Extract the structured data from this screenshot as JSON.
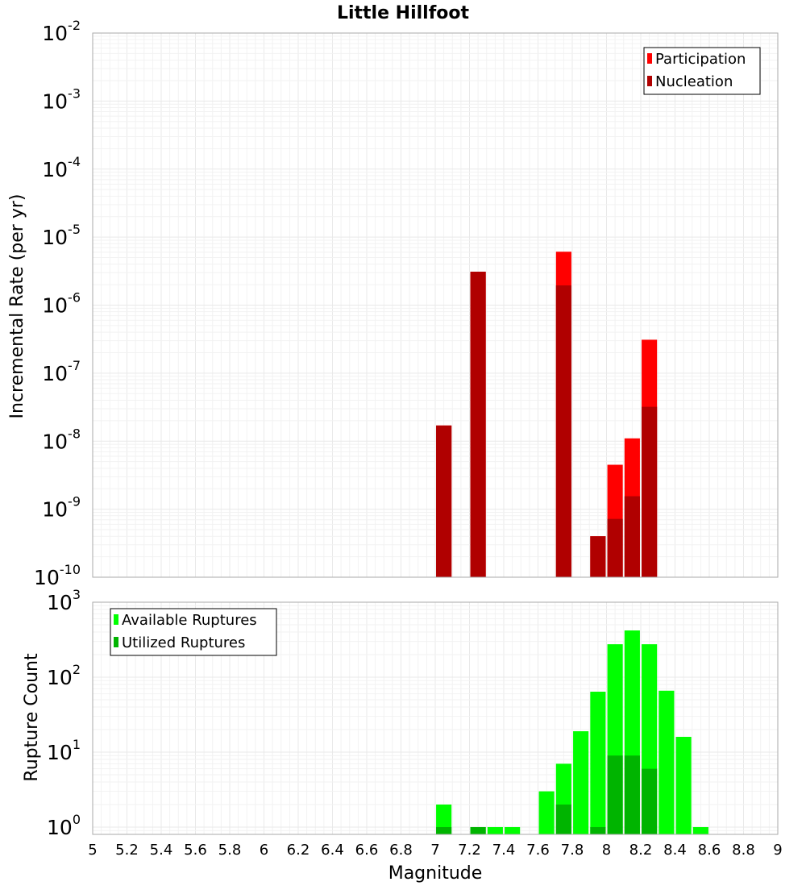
{
  "chart_data": [
    {
      "type": "bar",
      "title": "Little Hillfoot",
      "xlabel": "",
      "ylabel": "Incremental Rate (per yr)",
      "xlim": [
        5,
        9
      ],
      "ylim": [
        1e-10,
        0.01
      ],
      "yscale": "log",
      "grid": true,
      "legend_position": "top-right",
      "bar_width": 0.09,
      "series": [
        {
          "name": "Participation",
          "color": "#ff0000",
          "x": [
            7.05,
            7.25,
            7.75,
            7.95,
            8.05,
            8.15,
            8.25
          ],
          "values": [
            1.7e-08,
            3.1e-06,
            6.1e-06,
            4e-10,
            4.5e-09,
            1.1e-08,
            3.1e-07
          ]
        },
        {
          "name": "Nucleation",
          "color": "#b00000",
          "x": [
            7.05,
            7.25,
            7.75,
            7.95,
            8.05,
            8.15,
            8.25
          ],
          "values": [
            1.7e-08,
            3.1e-06,
            1.95e-06,
            4e-10,
            7.2e-10,
            1.55e-09,
            3.2e-08
          ]
        }
      ]
    },
    {
      "type": "bar",
      "title": "",
      "xlabel": "Magnitude",
      "ylabel": "Rupture Count",
      "xlim": [
        5,
        9
      ],
      "ylim": [
        0.8,
        1000
      ],
      "yscale": "log",
      "grid": true,
      "legend_position": "top-left",
      "bar_width": 0.09,
      "series": [
        {
          "name": "Available Ruptures",
          "color": "#00ff00",
          "x": [
            7.05,
            7.25,
            7.35,
            7.45,
            7.65,
            7.75,
            7.85,
            7.95,
            8.05,
            8.15,
            8.25,
            8.35,
            8.45,
            8.55
          ],
          "values": [
            2,
            1,
            1,
            1,
            3,
            7,
            19,
            64,
            275,
            420,
            275,
            66,
            16,
            1
          ]
        },
        {
          "name": "Utilized Ruptures",
          "color": "#00b400",
          "x": [
            7.05,
            7.25,
            7.75,
            7.95,
            8.05,
            8.15,
            8.25
          ],
          "values": [
            1,
            1,
            2,
            1,
            9,
            9,
            6
          ]
        }
      ]
    }
  ],
  "x_tick_labels": [
    "5",
    "5.2",
    "5.4",
    "5.6",
    "5.8",
    "6",
    "6.2",
    "6.4",
    "6.6",
    "6.8",
    "7",
    "7.2",
    "7.4",
    "7.6",
    "7.8",
    "8",
    "8.2",
    "8.4",
    "8.6",
    "8.8",
    "9"
  ],
  "top_y_tick_exponents": [
    "-2",
    "-3",
    "-4",
    "-5",
    "-6",
    "-7",
    "-8",
    "-9",
    "-10"
  ],
  "bottom_y_tick_exponents": [
    "3",
    "2",
    "1",
    "0"
  ],
  "y_tick_base": "10"
}
